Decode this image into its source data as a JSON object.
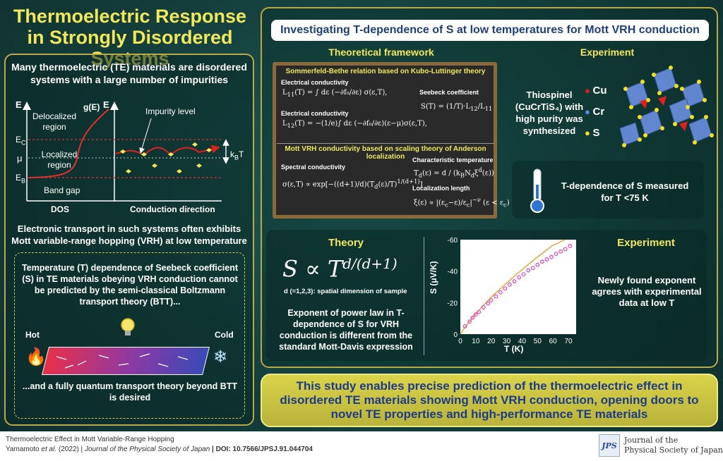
{
  "title": "Thermoelectric Response in Strongly Disordered Systems",
  "left": {
    "intro": "Many thermoelectric (TE) materials are disordered systems with a large number of impurities",
    "diagram": {
      "e_axis": "E",
      "g_label": "g(E)",
      "delocalized": "Delocalized region",
      "localized": "Localized region",
      "band_gap": "Band gap",
      "ec": "E",
      "ec_sub": "C",
      "mu": "μ",
      "eb": "E",
      "eb_sub": "B",
      "dos": "DOS",
      "e_axis2": "E",
      "impurity": "Impurity level",
      "conduction": "Conduction direction",
      "kbt": "k",
      "kbt_sub": "B",
      "kbt_t": "T"
    },
    "transport": "Electronic transport in such systems often exhibits Mott variable-range hopping (VRH) at low temperature",
    "box_text": "Temperature (T) dependence of Seebeck coefficient (S) in TE materials obeying VRH conduction cannot be predicted by the semi-classical Boltzmann transport theory (BTT)...",
    "hot": "Hot",
    "cold": "Cold",
    "box_end": "...and a fully quantum transport theory beyond BTT is desired"
  },
  "right": {
    "heading": "Investigating T-dependence of S at low temperatures for Mott VRH conduction",
    "theoretical": "Theoretical framework",
    "experiment1": "Experiment",
    "board": {
      "title1": "Sommerfeld-Bethe relation based on Kubo-Luttinger theory",
      "ec1": "Electrical conductivity",
      "ec2": "Electrical conductivity",
      "seebeck": "Seebeck coefficient",
      "title2": "Mott VRH conductivity based on scaling theory of Anderson localization",
      "spectral": "Spectral conductivity",
      "char_temp": "Characteristic temperature",
      "loc_len": "Localization length"
    },
    "thiospinel": "Thiospinel (CuCrTiS₄) with high purity was synthesized",
    "cu": "Cu",
    "cr": "Cr",
    "s": "S",
    "tdep": "T-dependence of S measured for T <75 K",
    "theory": "Theory",
    "formula_sub": "d (=1,2,3): spatial dimension of sample",
    "exponent_text": "Exponent of power law in T-dependence of S for VRH conduction is different from the standard Mott-Davis expression",
    "experiment2": "Experiment",
    "exp_text": "Newly found exponent agrees with experimental data at low T"
  },
  "conclusion": "This study enables precise prediction of the thermoelectric effect in disordered TE materials showing Mott VRH conduction, opening doors to novel TE properties and high-performance TE materials",
  "footer": {
    "line1": "Thermoelectric Effect in Mott Variable-Range Hopping",
    "authors": "Yamamoto",
    "etal": " et al.",
    "year": " (2022) | ",
    "journal_it": "Journal of the Physical Society of Japan",
    "doi": " | DOI: 10.7566/JPSJ.91.044704",
    "logo": "JPS",
    "journal1": "Journal of the",
    "journal2": "Physical Society of Japan"
  },
  "colors": {
    "accent": "#f2e85a",
    "panel_border": "#b8a94a",
    "conclusion_bg": "#d9d24a",
    "conclusion_text": "#1e3a8a"
  },
  "chart_data": {
    "type": "scatter",
    "xlabel": "T (K)",
    "ylabel": "S (μV/K)",
    "xlim": [
      0,
      75
    ],
    "ylim": [
      0,
      -60
    ],
    "xticks": [
      "0",
      "10",
      "20",
      "30",
      "40",
      "50",
      "60",
      "70"
    ],
    "yticks": [
      "0",
      "-20",
      "-40",
      "-60"
    ],
    "series": [
      {
        "kind": "points",
        "x": [
          3,
          6,
          8,
          10,
          12,
          15,
          18,
          20,
          23,
          26,
          29,
          32,
          35,
          38,
          41,
          44,
          47,
          50,
          53,
          56,
          59,
          62,
          65,
          68,
          71
        ],
        "y": [
          -5,
          -8,
          -10.5,
          -12.5,
          -14,
          -17,
          -19.5,
          -21.5,
          -24,
          -26.5,
          -29,
          -31.5,
          -33.5,
          -36,
          -38,
          -40.5,
          -42,
          -44,
          -46,
          -47.5,
          -49,
          -51,
          -52.5,
          -54,
          -56
        ]
      },
      {
        "kind": "line",
        "x": [
          0,
          5,
          10,
          20,
          30,
          40,
          50,
          60,
          68
        ],
        "y": [
          0,
          -7,
          -13,
          -23.5,
          -32.5,
          -41,
          -49,
          -56.5,
          -62
        ]
      }
    ]
  }
}
